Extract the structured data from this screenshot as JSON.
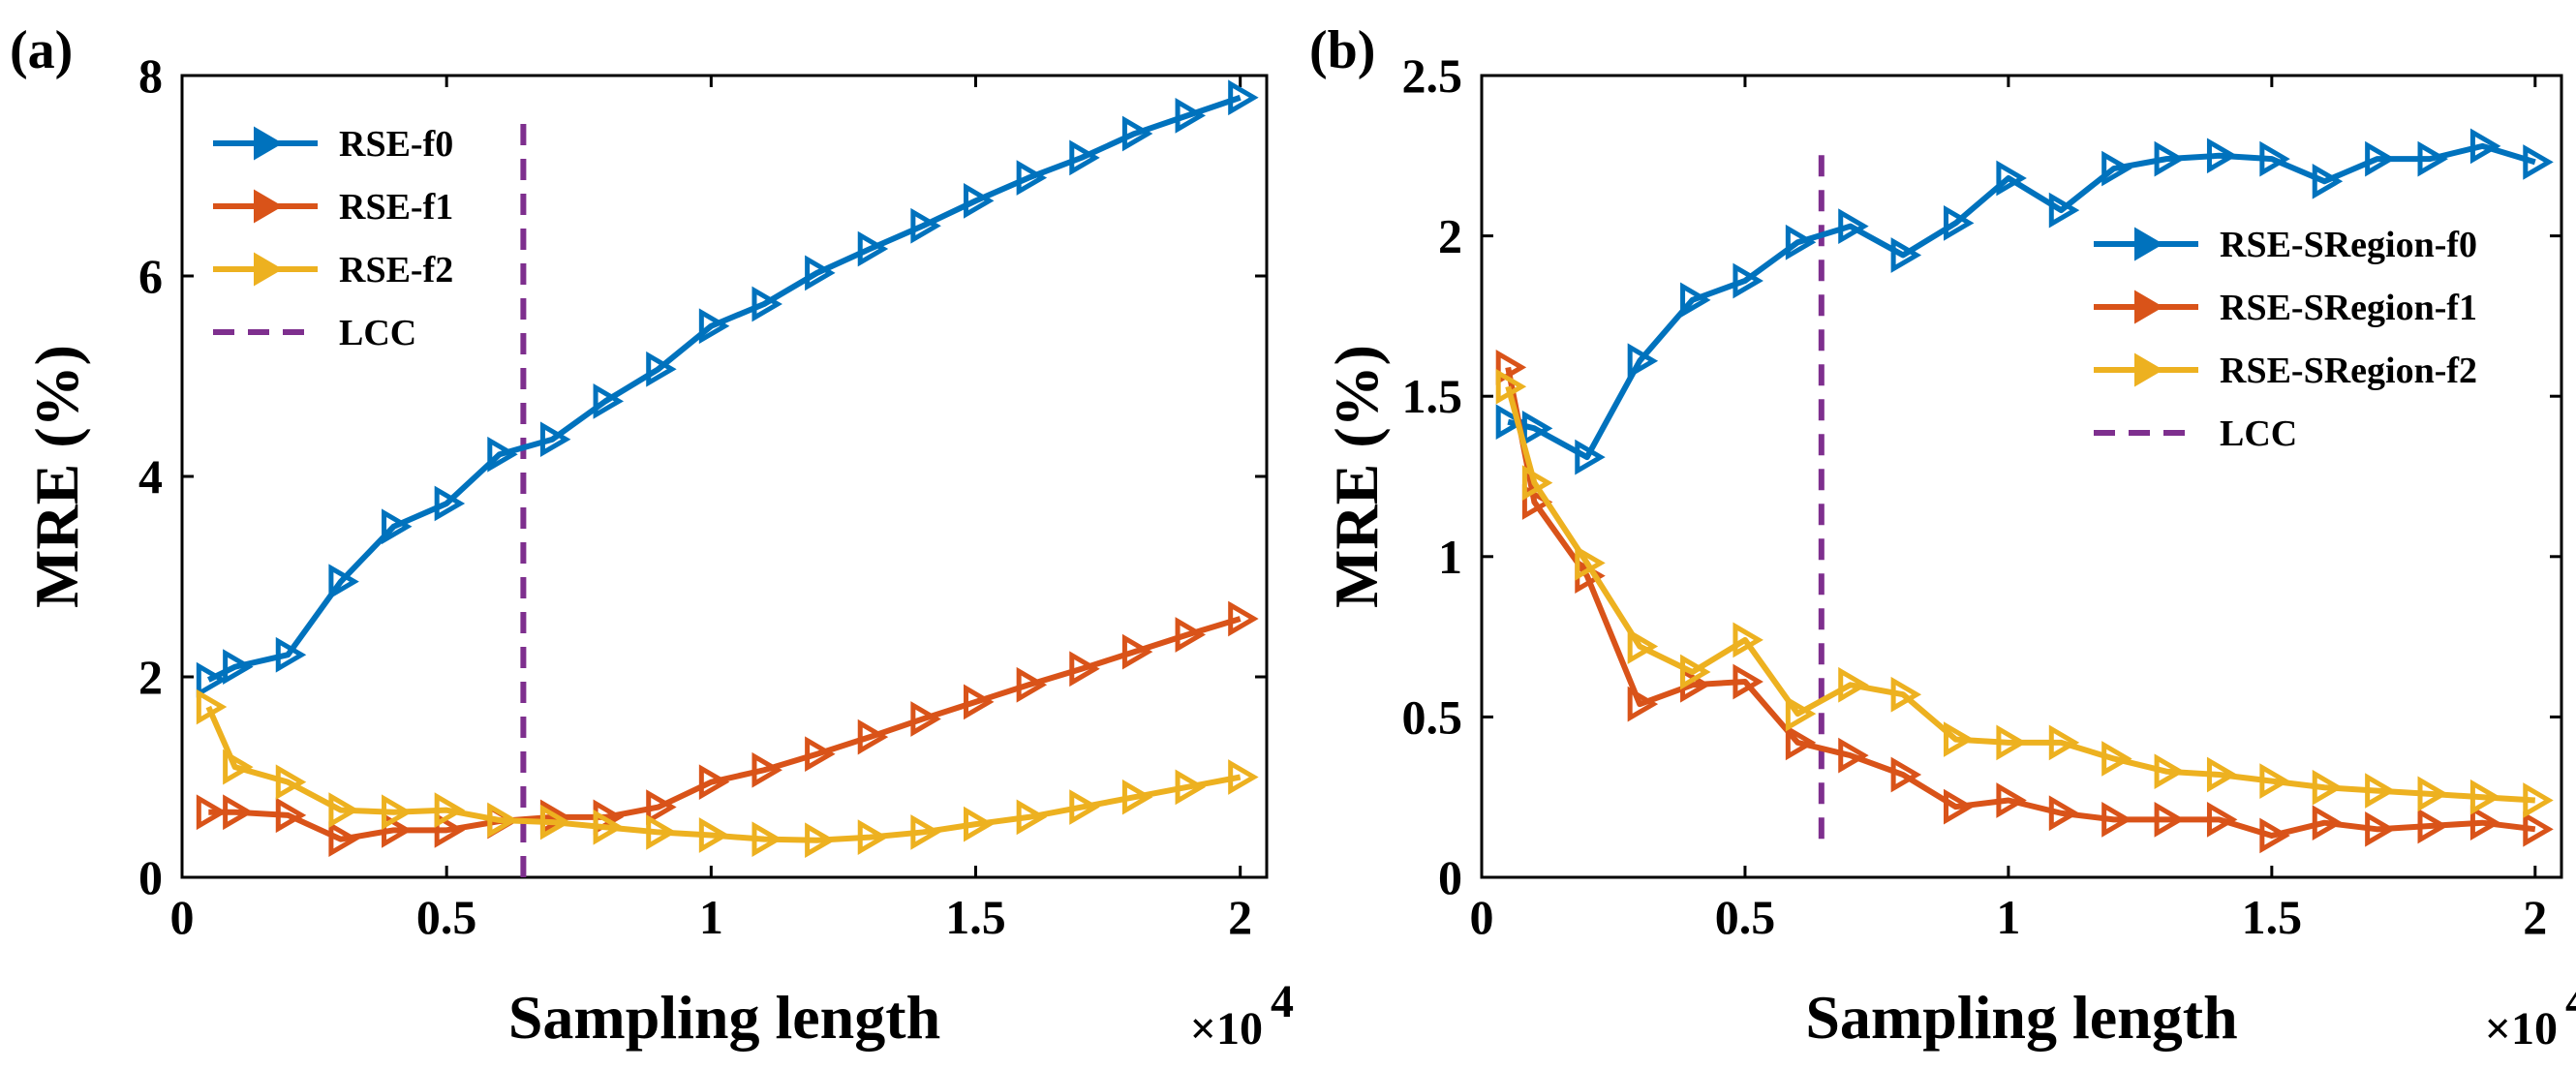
{
  "panel_labels": [
    "(a)",
    "(b)"
  ],
  "chart_data": [
    {
      "type": "line",
      "panel": "(a)",
      "xlabel": "Sampling length",
      "ylabel": "MRE (%)",
      "x_multiplier": "×10",
      "x_multiplier_exponent": "4",
      "xlim": [
        0,
        2.05
      ],
      "ylim": [
        0,
        8
      ],
      "xticks": [
        0,
        0.5,
        1,
        1.5,
        2
      ],
      "xtick_labels": [
        "0",
        "0.5",
        "1",
        "1.5",
        "2"
      ],
      "yticks": [
        0,
        2,
        4,
        6,
        8
      ],
      "ytick_labels": [
        "0",
        "2",
        "4",
        "6",
        "8"
      ],
      "legend_position": "top-left",
      "x": [
        0.05,
        0.1,
        0.2,
        0.3,
        0.4,
        0.5,
        0.6,
        0.7,
        0.8,
        0.9,
        1.0,
        1.1,
        1.2,
        1.3,
        1.4,
        1.5,
        1.6,
        1.7,
        1.8,
        1.9,
        2.0
      ],
      "series": [
        {
          "name": "RSE-f0",
          "color": "#0072BD",
          "values": [
            1.97,
            2.1,
            2.22,
            2.95,
            3.5,
            3.73,
            4.22,
            4.37,
            4.75,
            5.07,
            5.5,
            5.72,
            6.03,
            6.27,
            6.5,
            6.75,
            6.98,
            7.18,
            7.42,
            7.6,
            7.78
          ]
        },
        {
          "name": "RSE-f1",
          "color": "#D95319",
          "values": [
            0.65,
            0.65,
            0.62,
            0.38,
            0.47,
            0.47,
            0.56,
            0.6,
            0.6,
            0.7,
            0.95,
            1.07,
            1.23,
            1.4,
            1.58,
            1.75,
            1.92,
            2.08,
            2.25,
            2.42,
            2.58
          ]
        },
        {
          "name": "RSE-f2",
          "color": "#EDB120",
          "values": [
            1.7,
            1.1,
            0.95,
            0.67,
            0.65,
            0.67,
            0.57,
            0.55,
            0.5,
            0.45,
            0.42,
            0.38,
            0.37,
            0.4,
            0.45,
            0.53,
            0.6,
            0.7,
            0.8,
            0.9,
            1.0
          ]
        }
      ],
      "vline": {
        "name": "LCC",
        "color": "#7E2F8E",
        "x": 0.645,
        "y_range": [
          0,
          7.65
        ]
      }
    },
    {
      "type": "line",
      "panel": "(b)",
      "xlabel": "Sampling length",
      "ylabel": "MRE (%)",
      "x_multiplier": "×10",
      "x_multiplier_exponent": "4",
      "xlim": [
        0,
        2.05
      ],
      "ylim": [
        0,
        2.5
      ],
      "xticks": [
        0,
        0.5,
        1,
        1.5,
        2
      ],
      "xtick_labels": [
        "0",
        "0.5",
        "1",
        "1.5",
        "2"
      ],
      "yticks": [
        0,
        0.5,
        1,
        1.5,
        2,
        2.5
      ],
      "ytick_labels": [
        "0",
        "0.5",
        "1",
        "1.5",
        "2",
        "2.5"
      ],
      "legend_position": "right",
      "x": [
        0.05,
        0.1,
        0.2,
        0.3,
        0.4,
        0.5,
        0.6,
        0.7,
        0.8,
        0.9,
        1.0,
        1.1,
        1.2,
        1.3,
        1.4,
        1.5,
        1.6,
        1.7,
        1.8,
        1.9,
        2.0
      ],
      "series": [
        {
          "name": "RSE-SRegion-f0",
          "color": "#0072BD",
          "values": [
            1.42,
            1.4,
            1.31,
            1.61,
            1.8,
            1.86,
            1.98,
            2.03,
            1.94,
            2.04,
            2.18,
            2.08,
            2.21,
            2.24,
            2.25,
            2.24,
            2.17,
            2.24,
            2.24,
            2.28,
            2.23
          ]
        },
        {
          "name": "RSE-SRegion-f1",
          "color": "#D95319",
          "values": [
            1.59,
            1.17,
            0.94,
            0.54,
            0.6,
            0.61,
            0.42,
            0.38,
            0.32,
            0.22,
            0.24,
            0.2,
            0.18,
            0.18,
            0.18,
            0.13,
            0.17,
            0.15,
            0.16,
            0.17,
            0.15
          ]
        },
        {
          "name": "RSE-SRegion-f2",
          "color": "#EDB120",
          "values": [
            1.53,
            1.23,
            0.98,
            0.72,
            0.64,
            0.74,
            0.51,
            0.6,
            0.57,
            0.43,
            0.42,
            0.42,
            0.37,
            0.33,
            0.32,
            0.3,
            0.28,
            0.27,
            0.26,
            0.25,
            0.24
          ]
        }
      ],
      "vline": {
        "name": "LCC",
        "color": "#7E2F8E",
        "x": 0.645,
        "y_range": [
          0.12,
          2.28
        ]
      }
    }
  ]
}
